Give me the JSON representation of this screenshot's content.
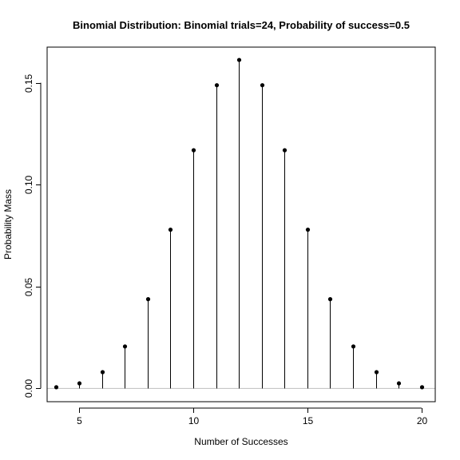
{
  "chart_data": {
    "type": "stem",
    "title": "Binomial Distribution:  Binomial trials=24, Probability of success=0.5",
    "xlabel": "Number of Successes",
    "ylabel": "Probability Mass",
    "xlim": [
      3.6,
      20.6
    ],
    "ylim": [
      -0.0065,
      0.1675
    ],
    "x_ticks": [
      5,
      10,
      15,
      20
    ],
    "x_tick_labels": [
      "5",
      "10",
      "15",
      "20"
    ],
    "y_ticks": [
      0.0,
      0.05,
      0.1,
      0.15
    ],
    "y_tick_labels": [
      "0.00",
      "0.05",
      "0.10",
      "0.15"
    ],
    "baseline": 0,
    "baseline_color": "#bebebe",
    "line_color": "#000000",
    "point_color": "#000000",
    "grid": false,
    "legend": "none",
    "x": [
      4,
      5,
      6,
      7,
      8,
      9,
      10,
      11,
      12,
      13,
      14,
      15,
      16,
      17,
      18,
      19,
      20
    ],
    "y": [
      0.0006,
      0.0025,
      0.008,
      0.0206,
      0.0438,
      0.0779,
      0.1169,
      0.1488,
      0.1612,
      0.1488,
      0.1169,
      0.0779,
      0.0438,
      0.0206,
      0.008,
      0.0025,
      0.0006
    ]
  }
}
